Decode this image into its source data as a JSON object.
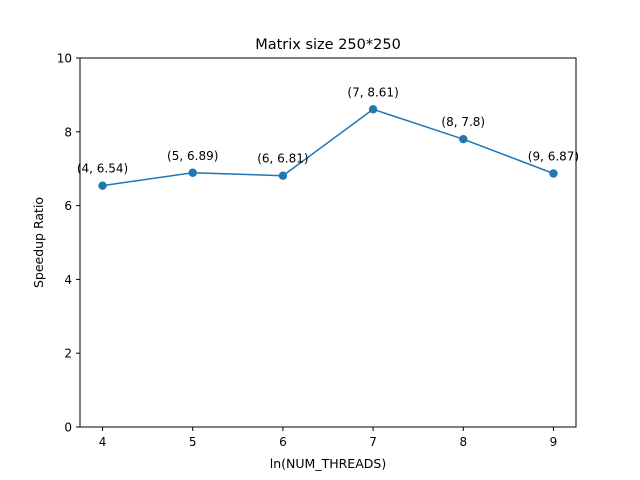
{
  "chart_data": {
    "type": "line",
    "title": "Matrix size 250*250",
    "xlabel": "ln(NUM_THREADS)",
    "ylabel": "Speedup Ratio",
    "x": [
      4,
      5,
      6,
      7,
      8,
      9
    ],
    "series": [
      {
        "values": [
          6.54,
          6.89,
          6.81,
          8.61,
          7.8,
          6.87
        ],
        "color": "#1f77b4"
      }
    ],
    "annotations": [
      "(4, 6.54)",
      "(5, 6.89)",
      "(6, 6.81)",
      "(7, 8.61)",
      "(8, 7.8)",
      "(9, 6.87)"
    ],
    "x_ticks": [
      "4",
      "5",
      "6",
      "7",
      "8",
      "9"
    ],
    "y_ticks": [
      "0",
      "2",
      "4",
      "6",
      "8",
      "10"
    ],
    "xlim": [
      3.75,
      9.25
    ],
    "ylim": [
      0,
      10
    ],
    "grid": false,
    "legend": "none"
  }
}
